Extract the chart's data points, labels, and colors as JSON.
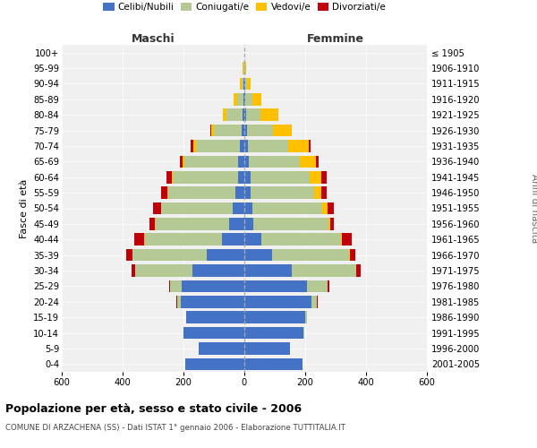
{
  "age_groups": [
    "100+",
    "95-99",
    "90-94",
    "85-89",
    "80-84",
    "75-79",
    "70-74",
    "65-69",
    "60-64",
    "55-59",
    "50-54",
    "45-49",
    "40-44",
    "35-39",
    "30-34",
    "25-29",
    "20-24",
    "15-19",
    "10-14",
    "5-9",
    "0-4"
  ],
  "birth_years": [
    "≤ 1905",
    "1906-1910",
    "1911-1915",
    "1916-1920",
    "1921-1925",
    "1926-1930",
    "1931-1935",
    "1936-1940",
    "1941-1945",
    "1946-1950",
    "1951-1955",
    "1956-1960",
    "1961-1965",
    "1966-1970",
    "1971-1975",
    "1976-1980",
    "1981-1985",
    "1986-1990",
    "1991-1995",
    "1996-2000",
    "2001-2005"
  ],
  "male_celibi": [
    1,
    1,
    2,
    4,
    6,
    10,
    15,
    20,
    22,
    28,
    38,
    50,
    75,
    125,
    170,
    205,
    210,
    190,
    200,
    150,
    195
  ],
  "male_coniugati": [
    0,
    2,
    8,
    20,
    52,
    90,
    145,
    178,
    212,
    222,
    235,
    242,
    252,
    242,
    188,
    38,
    10,
    2,
    0,
    0,
    0
  ],
  "male_vedovi": [
    0,
    3,
    6,
    10,
    12,
    10,
    8,
    5,
    3,
    2,
    2,
    2,
    2,
    2,
    2,
    1,
    1,
    0,
    0,
    0,
    0
  ],
  "male_divorziati": [
    0,
    0,
    0,
    0,
    2,
    2,
    8,
    10,
    18,
    22,
    25,
    18,
    32,
    18,
    12,
    4,
    2,
    0,
    0,
    0,
    0
  ],
  "female_nubili": [
    1,
    1,
    2,
    3,
    5,
    8,
    12,
    15,
    20,
    22,
    25,
    30,
    55,
    90,
    155,
    205,
    220,
    200,
    195,
    150,
    190
  ],
  "female_coniugate": [
    0,
    2,
    8,
    22,
    48,
    85,
    132,
    168,
    195,
    207,
    230,
    245,
    262,
    255,
    212,
    68,
    18,
    5,
    1,
    0,
    0
  ],
  "female_vedove": [
    0,
    4,
    12,
    30,
    58,
    62,
    68,
    52,
    38,
    25,
    18,
    8,
    5,
    3,
    2,
    1,
    1,
    0,
    0,
    0,
    0
  ],
  "female_divorziate": [
    0,
    0,
    0,
    0,
    2,
    2,
    5,
    8,
    18,
    16,
    22,
    12,
    30,
    18,
    12,
    4,
    2,
    0,
    0,
    0,
    0
  ],
  "color_celibi": "#4472c4",
  "color_coniugati": "#b5c994",
  "color_vedovi": "#ffc000",
  "color_divorziati": "#c0000b",
  "title": "Popolazione per età, sesso e stato civile - 2006",
  "subtitle": "COMUNE DI ARZACHENA (SS) - Dati ISTAT 1° gennaio 2006 - Elaborazione TUTTITALIA.IT",
  "legend_labels": [
    "Celibi/Nubili",
    "Coniugati/e",
    "Vedovi/e",
    "Divorziati/e"
  ],
  "label_maschi": "Maschi",
  "label_femmine": "Femmine",
  "label_fasce": "Fasce di età",
  "label_anni": "Anni di nascita",
  "xlim": 600,
  "bg_color": "#f0f0f0",
  "grid_color": "#dddddd"
}
